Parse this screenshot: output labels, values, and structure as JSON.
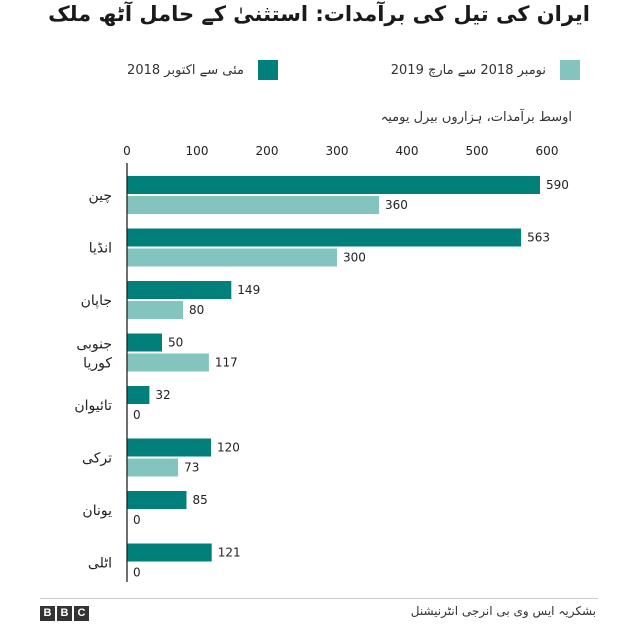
{
  "colors": {
    "series_a": "#007f7b",
    "series_b": "#83c5be",
    "axis": "#222222",
    "text": "#222222"
  },
  "chart_data": {
    "type": "bar",
    "orientation": "horizontal",
    "title": "ایران کی تیل کی برآمدات: استثنیٰ کے حامل آٹھ ملک",
    "subtitle": "اوسط برآمدات، ہزاروں بیرل یومیہ",
    "categories": [
      "چین",
      "انڈیا",
      "جاپان",
      "جنوبی کوریا",
      "تائیوان",
      "ترکی",
      "یونان",
      "اٹلی"
    ],
    "series": [
      {
        "name": "مئی سے اکتوبر 2018",
        "values": [
          590,
          563,
          149,
          50,
          32,
          120,
          85,
          121
        ]
      },
      {
        "name": "نومبر 2018 سے مارچ 2019",
        "values": [
          360,
          300,
          80,
          117,
          0,
          73,
          0,
          0
        ]
      }
    ],
    "xlim": [
      0,
      600
    ],
    "xticks": [
      0,
      100,
      200,
      300,
      400,
      500,
      600
    ],
    "grid": false,
    "legend": "top"
  },
  "footer": {
    "brand_letters": [
      "B",
      "B",
      "C"
    ],
    "source": "بشکریہ ایس وی بی انرجی انٹرنیشنل"
  }
}
